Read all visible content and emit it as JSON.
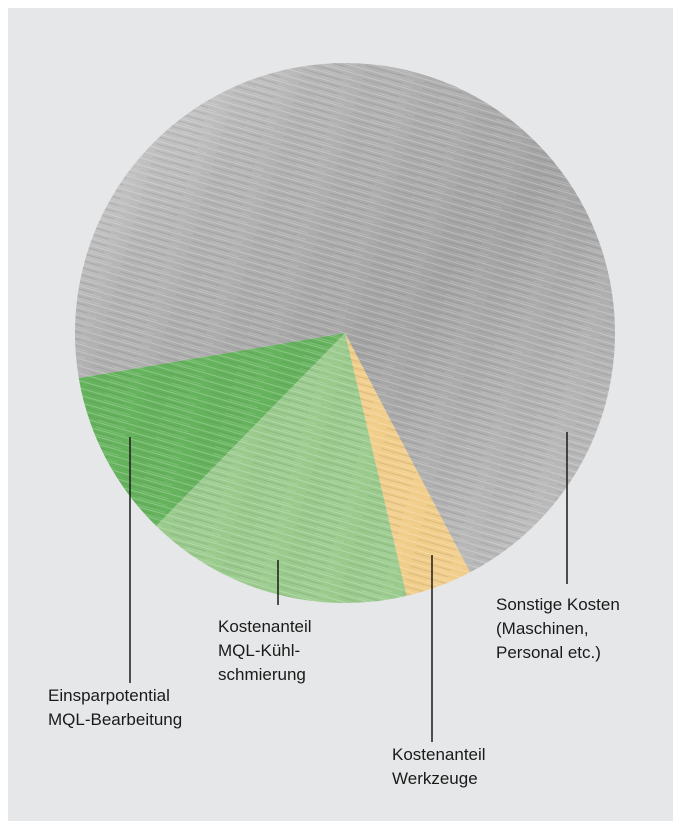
{
  "chart_data": {
    "type": "pie",
    "categories": [
      [
        "Kostenanteil",
        "Werkzeuge"
      ],
      [
        "Kostenanteil",
        "MQL-Kühl-",
        "schmierung"
      ],
      [
        "Einsparpotential",
        "MQL-Bearbeitung"
      ],
      [
        "Sonstige Kosten",
        "(Maschinen,",
        "Personal etc.)"
      ]
    ],
    "values": [
      4,
      16,
      10,
      70
    ],
    "colors": [
      "#f2c879",
      "#8cc67c",
      "#4ea944",
      "#a9a9a9"
    ]
  }
}
